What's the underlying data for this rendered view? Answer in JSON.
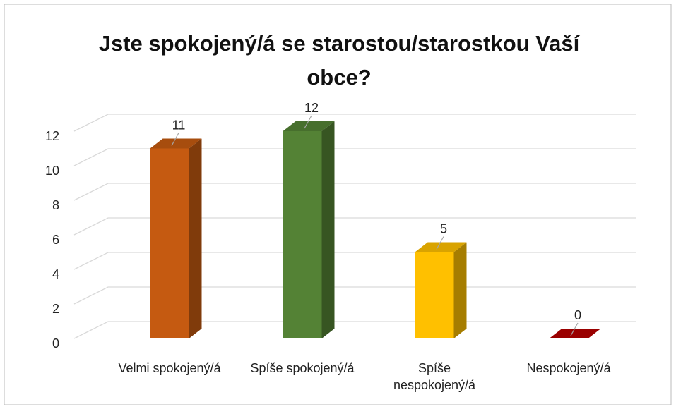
{
  "chart_data": {
    "type": "bar3d",
    "title": "Jste spokojený/á se starostou/starostkou Vaší obce?",
    "categories": [
      "Velmi spokojený/á",
      "Spíše spokojený/á",
      "Spíše nespokojený/á",
      "Nespokojený/á"
    ],
    "values": [
      11,
      12,
      5,
      0
    ],
    "colors": [
      "#c55a11",
      "#548235",
      "#ffc000",
      "#c00000"
    ],
    "ylim": [
      0,
      12
    ],
    "yticks": [
      0,
      2,
      4,
      6,
      8,
      10,
      12
    ],
    "grid": true
  }
}
